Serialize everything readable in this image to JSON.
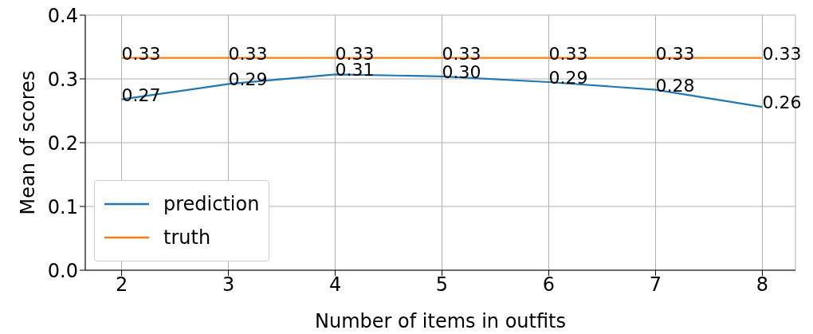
{
  "chart_data": {
    "type": "line",
    "xlabel": "Number of items in outfits",
    "ylabel": "Mean of scores",
    "x": [
      2,
      3,
      4,
      5,
      6,
      7,
      8
    ],
    "series": [
      {
        "name": "prediction",
        "color": "#1f77b4",
        "values": [
          0.268,
          0.292,
          0.307,
          0.304,
          0.295,
          0.283,
          0.256
        ],
        "value_labels": [
          "0.27",
          "0.29",
          "0.31",
          "0.30",
          "0.29",
          "0.28",
          "0.26"
        ]
      },
      {
        "name": "truth",
        "color": "#ff7f0e",
        "values": [
          0.333,
          0.333,
          0.333,
          0.333,
          0.333,
          0.333,
          0.333
        ],
        "value_labels": [
          "0.33",
          "0.33",
          "0.33",
          "0.33",
          "0.33",
          "0.33",
          "0.33"
        ]
      }
    ],
    "xlim": [
      1.66,
      8.31
    ],
    "xticks": [
      2,
      3,
      4,
      5,
      6,
      7,
      8
    ],
    "ylim": [
      0,
      0.4
    ],
    "yticks": [
      {
        "value": 0,
        "label": "0.0"
      },
      {
        "value": 0.1,
        "label": "0.1"
      },
      {
        "value": 0.2,
        "label": "0.2"
      },
      {
        "value": 0.3,
        "label": "0.3"
      },
      {
        "value": 0.4,
        "label": "0.4"
      }
    ],
    "grid": true,
    "legend": "bottom left",
    "marker": "none",
    "line_style": "solid"
  }
}
